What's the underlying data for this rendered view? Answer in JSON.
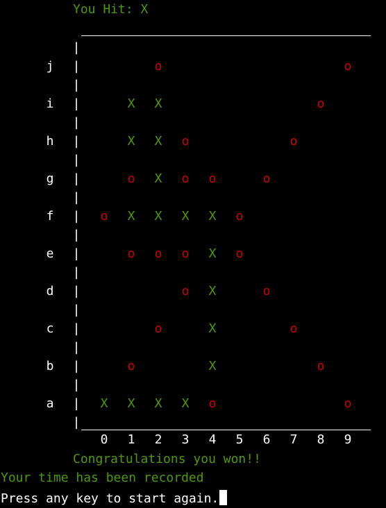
{
  "status": {
    "prefix": "You Hit:",
    "last_hit": "X"
  },
  "board": {
    "row_labels": [
      "j",
      "i",
      "h",
      "g",
      "f",
      "e",
      "d",
      "c",
      "b",
      "a"
    ],
    "col_labels": [
      "0",
      "1",
      "2",
      "3",
      "4",
      "5",
      "6",
      "7",
      "8",
      "9"
    ],
    "hit_symbol": "X",
    "miss_symbol": "o",
    "rows": [
      [
        "",
        "",
        "o",
        "",
        "",
        "",
        "",
        "",
        "",
        "o"
      ],
      [
        "",
        "X",
        "X",
        "",
        "",
        "",
        "",
        "",
        "o",
        ""
      ],
      [
        "",
        "X",
        "X",
        "o",
        "",
        "",
        "",
        "o",
        "",
        ""
      ],
      [
        "",
        "o",
        "X",
        "o",
        "o",
        "",
        "o",
        "",
        "",
        ""
      ],
      [
        "o",
        "X",
        "X",
        "X",
        "X",
        "o",
        "",
        "",
        "",
        ""
      ],
      [
        "",
        "o",
        "o",
        "o",
        "X",
        "o",
        "",
        "",
        "",
        ""
      ],
      [
        "",
        "",
        "",
        "o",
        "X",
        "",
        "o",
        "",
        "",
        ""
      ],
      [
        "",
        "",
        "o",
        "",
        "X",
        "",
        "",
        "o",
        "",
        ""
      ],
      [
        "",
        "o",
        "",
        "",
        "X",
        "",
        "",
        "",
        "o",
        ""
      ],
      [
        "X",
        "X",
        "X",
        "X",
        "o",
        "",
        "",
        "",
        "",
        "o"
      ]
    ]
  },
  "messages": {
    "won": "Congratulations you won!!",
    "recorded": "Your time has been recorded",
    "prompt": "Press any key to start again."
  },
  "colors": {
    "background": "#000000",
    "hit": "#4e9a06",
    "miss": "#cc0000",
    "text": "#ffffff"
  }
}
